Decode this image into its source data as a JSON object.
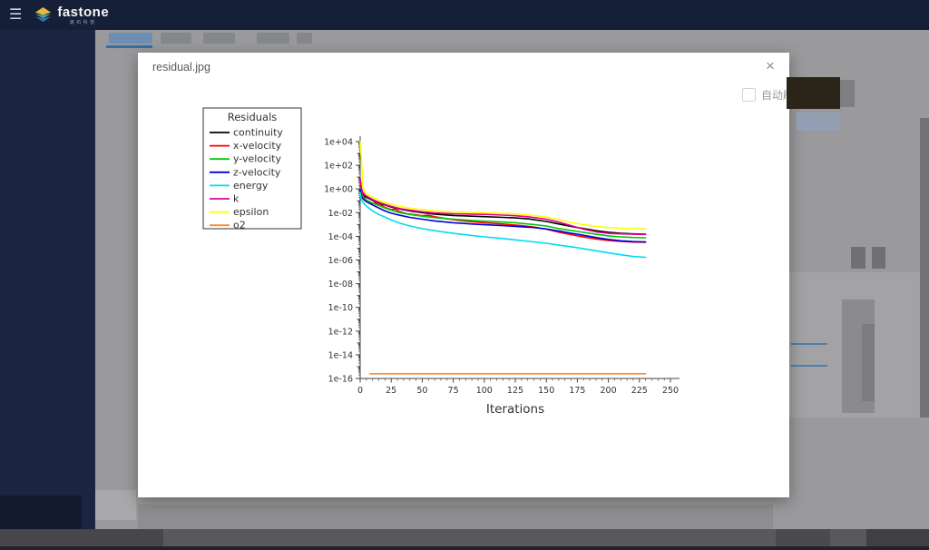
{
  "header": {
    "brand": "fastone",
    "brand_sub": "速石科技"
  },
  "icons": {
    "menu": "☰",
    "close": "×"
  },
  "modal": {
    "title": "residual.jpg",
    "auto_refresh_label": "自动刷新",
    "auto_refresh_checked": false
  },
  "colors": {
    "header_bg": "#161f38",
    "sidebar_bg": "#1b2440",
    "overlay_bg": "#9a9a9c",
    "accent_blue": "#3070ad"
  },
  "chart_data": {
    "type": "line",
    "legend_title": "Residuals",
    "xlabel": "Iterations",
    "xlim": [
      0,
      250
    ],
    "x_major_ticks": [
      0,
      25,
      50,
      75,
      100,
      125,
      150,
      175,
      200,
      225,
      250
    ],
    "x_minor_step": 5,
    "y_scale": "log",
    "y_exp_range": [
      4,
      -16
    ],
    "y_tick_labels": [
      "1e+04",
      "1e+02",
      "1e+00",
      "1e-02",
      "1e-04",
      "1e-06",
      "1e-08",
      "1e-10",
      "1e-12",
      "1e-14",
      "1e-16"
    ],
    "grid": false,
    "legend_position": "upper-left-outside",
    "series": [
      {
        "name": "continuity",
        "color": "#000000",
        "points": [
          [
            0,
            1.5
          ],
          [
            1,
            0.5
          ],
          [
            2,
            0.35
          ],
          [
            4,
            0.22
          ],
          [
            6,
            0.18
          ],
          [
            10,
            0.11
          ],
          [
            15,
            0.06
          ],
          [
            20,
            0.045
          ],
          [
            25,
            0.03
          ],
          [
            32,
            0.02
          ],
          [
            40,
            0.014
          ],
          [
            50,
            0.01
          ],
          [
            60,
            0.0075
          ],
          [
            75,
            0.0058
          ],
          [
            90,
            0.005
          ],
          [
            100,
            0.0046
          ],
          [
            115,
            0.004
          ],
          [
            125,
            0.0036
          ],
          [
            135,
            0.003
          ],
          [
            150,
            0.0018
          ],
          [
            160,
            0.0011
          ],
          [
            175,
            0.00055
          ],
          [
            190,
            0.0003
          ],
          [
            200,
            0.00022
          ],
          [
            210,
            0.00018
          ],
          [
            220,
            0.00016
          ],
          [
            230,
            0.00015
          ]
        ]
      },
      {
        "name": "x-velocity",
        "color": "#ff0000",
        "points": [
          [
            0,
            3
          ],
          [
            1,
            0.6
          ],
          [
            2,
            0.3
          ],
          [
            4,
            0.15
          ],
          [
            6,
            0.1
          ],
          [
            8,
            0.08
          ],
          [
            10,
            0.06
          ],
          [
            13,
            0.065
          ],
          [
            16,
            0.05
          ],
          [
            20,
            0.028
          ],
          [
            25,
            0.018
          ],
          [
            28,
            0.02
          ],
          [
            32,
            0.012
          ],
          [
            38,
            0.008
          ],
          [
            45,
            0.0065
          ],
          [
            50,
            0.0055
          ],
          [
            55,
            0.006
          ],
          [
            60,
            0.0045
          ],
          [
            70,
            0.003
          ],
          [
            80,
            0.0022
          ],
          [
            90,
            0.0017
          ],
          [
            100,
            0.0014
          ],
          [
            110,
            0.0012
          ],
          [
            120,
            0.001
          ],
          [
            130,
            0.0008
          ],
          [
            140,
            0.0006
          ],
          [
            150,
            0.0004
          ],
          [
            160,
            0.00022
          ],
          [
            175,
            0.00011
          ],
          [
            190,
            6e-05
          ],
          [
            200,
            4.5e-05
          ],
          [
            210,
            3.8e-05
          ],
          [
            220,
            3.3e-05
          ],
          [
            230,
            3.2e-05
          ]
        ]
      },
      {
        "name": "y-velocity",
        "color": "#00c800",
        "points": [
          [
            0,
            1.2
          ],
          [
            1,
            0.35
          ],
          [
            2,
            0.22
          ],
          [
            4,
            0.14
          ],
          [
            6,
            0.1
          ],
          [
            10,
            0.065
          ],
          [
            15,
            0.04
          ],
          [
            20,
            0.025
          ],
          [
            25,
            0.016
          ],
          [
            32,
            0.01
          ],
          [
            40,
            0.007
          ],
          [
            50,
            0.005
          ],
          [
            60,
            0.0038
          ],
          [
            75,
            0.0028
          ],
          [
            90,
            0.0022
          ],
          [
            100,
            0.0019
          ],
          [
            115,
            0.0016
          ],
          [
            125,
            0.0014
          ],
          [
            140,
            0.001
          ],
          [
            150,
            0.00075
          ],
          [
            160,
            0.00045
          ],
          [
            175,
            0.00026
          ],
          [
            190,
            0.00015
          ],
          [
            200,
            0.00011
          ],
          [
            210,
            9e-05
          ],
          [
            220,
            8e-05
          ],
          [
            230,
            7.5e-05
          ]
        ]
      },
      {
        "name": "z-velocity",
        "color": "#0000dc",
        "points": [
          [
            0,
            0.9
          ],
          [
            1,
            0.25
          ],
          [
            2,
            0.16
          ],
          [
            4,
            0.1
          ],
          [
            6,
            0.075
          ],
          [
            10,
            0.045
          ],
          [
            15,
            0.025
          ],
          [
            20,
            0.014
          ],
          [
            25,
            0.009
          ],
          [
            32,
            0.006
          ],
          [
            40,
            0.004
          ],
          [
            50,
            0.0028
          ],
          [
            60,
            0.002
          ],
          [
            75,
            0.0014
          ],
          [
            90,
            0.0011
          ],
          [
            100,
            0.00095
          ],
          [
            115,
            0.0008
          ],
          [
            125,
            0.0007
          ],
          [
            140,
            0.00055
          ],
          [
            150,
            0.00042
          ],
          [
            160,
            0.00028
          ],
          [
            175,
            0.00015
          ],
          [
            190,
            8e-05
          ],
          [
            200,
            5.5e-05
          ],
          [
            210,
            4.2e-05
          ],
          [
            220,
            3.6e-05
          ],
          [
            230,
            3.4e-05
          ]
        ]
      },
      {
        "name": "energy",
        "color": "#00dcf0",
        "points": [
          [
            0,
            0.5
          ],
          [
            1,
            0.12
          ],
          [
            2,
            0.08
          ],
          [
            4,
            0.045
          ],
          [
            6,
            0.03
          ],
          [
            10,
            0.014
          ],
          [
            15,
            0.007
          ],
          [
            20,
            0.0042
          ],
          [
            25,
            0.0024
          ],
          [
            32,
            0.0013
          ],
          [
            40,
            0.00075
          ],
          [
            50,
            0.00045
          ],
          [
            60,
            0.0003
          ],
          [
            75,
            0.00018
          ],
          [
            90,
            0.00012
          ],
          [
            100,
            9e-05
          ],
          [
            115,
            6.5e-05
          ],
          [
            125,
            5e-05
          ],
          [
            140,
            3.4e-05
          ],
          [
            150,
            2.6e-05
          ],
          [
            160,
            1.8e-05
          ],
          [
            175,
            1.1e-05
          ],
          [
            190,
            6e-06
          ],
          [
            200,
            4e-06
          ],
          [
            210,
            2.8e-06
          ],
          [
            220,
            2e-06
          ],
          [
            230,
            1.7e-06
          ]
        ]
      },
      {
        "name": "k",
        "color": "#e10098",
        "points": [
          [
            0,
            8
          ],
          [
            1,
            1.2
          ],
          [
            2,
            0.55
          ],
          [
            4,
            0.3
          ],
          [
            6,
            0.22
          ],
          [
            10,
            0.13
          ],
          [
            15,
            0.075
          ],
          [
            20,
            0.05
          ],
          [
            25,
            0.034
          ],
          [
            32,
            0.022
          ],
          [
            40,
            0.016
          ],
          [
            50,
            0.012
          ],
          [
            60,
            0.0095
          ],
          [
            75,
            0.008
          ],
          [
            90,
            0.0075
          ],
          [
            100,
            0.0072
          ],
          [
            115,
            0.0062
          ],
          [
            125,
            0.0055
          ],
          [
            135,
            0.0045
          ],
          [
            150,
            0.0028
          ],
          [
            160,
            0.0016
          ],
          [
            170,
            0.0008
          ],
          [
            180,
            0.0004
          ],
          [
            190,
            0.00024
          ],
          [
            200,
            0.00018
          ],
          [
            210,
            0.00016
          ],
          [
            220,
            0.00015
          ],
          [
            230,
            0.000145
          ]
        ]
      },
      {
        "name": "epsilon",
        "color": "#ffff00",
        "points": [
          [
            0,
            10000
          ],
          [
            1,
            300
          ],
          [
            2,
            2
          ],
          [
            3,
            0.8
          ],
          [
            4,
            0.5
          ],
          [
            6,
            0.35
          ],
          [
            10,
            0.2
          ],
          [
            15,
            0.11
          ],
          [
            20,
            0.07
          ],
          [
            25,
            0.05
          ],
          [
            32,
            0.033
          ],
          [
            40,
            0.024
          ],
          [
            50,
            0.018
          ],
          [
            60,
            0.014
          ],
          [
            75,
            0.0115
          ],
          [
            90,
            0.0105
          ],
          [
            100,
            0.01
          ],
          [
            115,
            0.009
          ],
          [
            125,
            0.008
          ],
          [
            135,
            0.0065
          ],
          [
            150,
            0.0042
          ],
          [
            160,
            0.0026
          ],
          [
            170,
            0.0015
          ],
          [
            180,
            0.00095
          ],
          [
            190,
            0.0007
          ],
          [
            200,
            0.00055
          ],
          [
            210,
            0.00047
          ],
          [
            220,
            0.00043
          ],
          [
            230,
            0.00042
          ]
        ]
      },
      {
        "name": "o2",
        "color": "#ff8c28",
        "points": [
          [
            8,
            2.5e-16
          ],
          [
            230,
            2.5e-16
          ]
        ]
      }
    ]
  }
}
